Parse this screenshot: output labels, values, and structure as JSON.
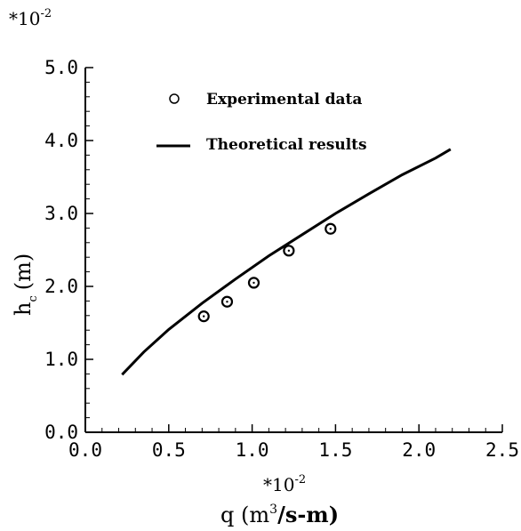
{
  "chart_data": {
    "type": "scatter",
    "x_multiplier": "*10",
    "x_multiplier_exp": "-2",
    "y_multiplier": "*10",
    "y_multiplier_exp": "-2",
    "xlabel": {
      "base": "q",
      "unit_open": "(m",
      "unit_exp": "3",
      "unit_rest": "/s-m)"
    },
    "ylabel": {
      "base": "h",
      "sub": "c",
      "unit": "(m)"
    },
    "xlim": [
      0.0,
      2.5
    ],
    "ylim": [
      0.0,
      5.0
    ],
    "x_ticks": [
      "0.0",
      "0.5",
      "1.0",
      "1.5",
      "2.0",
      "2.5"
    ],
    "y_ticks": [
      "0.0",
      "1.0",
      "2.0",
      "3.0",
      "4.0",
      "5.0"
    ],
    "grid": false,
    "legend_position": "top-center",
    "series": [
      {
        "name": "Experimental data",
        "kind": "markers",
        "marker": "open-circle",
        "points": [
          [
            0.71,
            1.59
          ],
          [
            0.85,
            1.79
          ],
          [
            1.01,
            2.05
          ],
          [
            1.22,
            2.49
          ],
          [
            1.47,
            2.79
          ]
        ]
      },
      {
        "name": "Theoretical results",
        "kind": "line",
        "points": [
          [
            0.22,
            0.79
          ],
          [
            0.35,
            1.1
          ],
          [
            0.5,
            1.41
          ],
          [
            0.7,
            1.77
          ],
          [
            0.9,
            2.1
          ],
          [
            1.1,
            2.42
          ],
          [
            1.3,
            2.71
          ],
          [
            1.5,
            3.0
          ],
          [
            1.7,
            3.27
          ],
          [
            1.9,
            3.53
          ],
          [
            2.1,
            3.76
          ],
          [
            2.19,
            3.88
          ]
        ]
      }
    ]
  }
}
